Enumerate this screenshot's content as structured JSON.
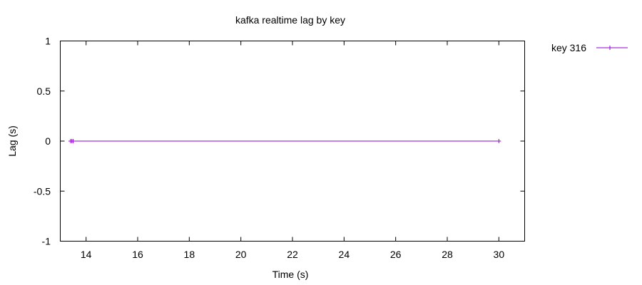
{
  "chart_data": {
    "type": "line",
    "title": "kafka realtime lag by key",
    "xlabel": "Time (s)",
    "ylabel": "Lag (s)",
    "xlim": [
      13.0,
      31.0
    ],
    "ylim": [
      -1,
      1
    ],
    "xticks": [
      14,
      16,
      18,
      20,
      22,
      24,
      26,
      28,
      30
    ],
    "yticks": [
      -1,
      -0.5,
      0,
      0.5,
      1
    ],
    "xtick_labels": [
      "14",
      "16",
      "18",
      "20",
      "22",
      "24",
      "26",
      "28",
      "30"
    ],
    "ytick_labels": [
      "-1",
      "-0.5",
      "0",
      "0.5",
      "1"
    ],
    "grid": false,
    "legend_position": "outside-top-right",
    "series": [
      {
        "name": "key 316",
        "color": "#9400d3",
        "marker": "plus",
        "x": [
          13.4,
          13.45,
          13.5,
          30.0
        ],
        "y": [
          0,
          0,
          0,
          0
        ]
      }
    ]
  }
}
